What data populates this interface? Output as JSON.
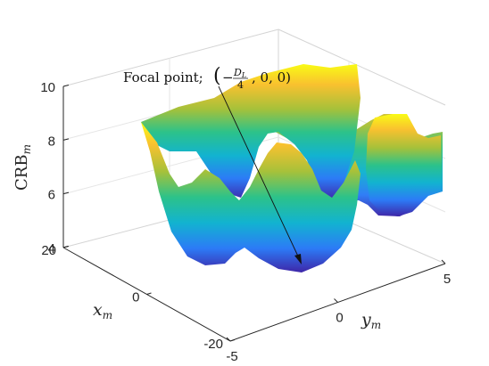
{
  "chart_data": {
    "type": "surface",
    "title": "",
    "annotation": {
      "text_main": "Focal point;",
      "text_math_lparen": "(",
      "text_math_minus": "−",
      "text_math_num": "D",
      "text_math_num_sub": "L",
      "text_math_den": "4",
      "text_math_rest": ", 0, 0)",
      "points_to": [
        0,
        0,
        4.3
      ]
    },
    "xlabel": "x",
    "xlabel_sub": "m",
    "ylabel": "y",
    "ylabel_sub": "m",
    "zlabel": "CRB",
    "zlabel_sub": "m",
    "x_ticks": [
      {
        "value": 20,
        "label": "20"
      },
      {
        "value": 0,
        "label": "0"
      },
      {
        "value": -20,
        "label": "-20"
      }
    ],
    "y_ticks": [
      {
        "value": -5,
        "label": "-5"
      },
      {
        "value": 0,
        "label": "0"
      },
      {
        "value": 5,
        "label": "5"
      }
    ],
    "z_ticks": [
      {
        "value": 4,
        "label": "4"
      },
      {
        "value": 6,
        "label": "6"
      },
      {
        "value": 8,
        "label": "8"
      },
      {
        "value": 10,
        "label": "10"
      }
    ],
    "xlim": [
      -20,
      20
    ],
    "ylim": [
      -5,
      5
    ],
    "zlim": [
      4,
      10
    ],
    "colormap": "parula",
    "colors": [
      "#3e26a8",
      "#2c7bf6",
      "#12b3d0",
      "#2cc28a",
      "#a6c13a",
      "#f9c12f",
      "#f9fb15"
    ],
    "grid": true,
    "x_samples": [
      -10,
      -5,
      0,
      5,
      10
    ],
    "y_samples": [
      -4.5,
      -2.5,
      0,
      2.5,
      4.5
    ],
    "z_values": [
      [
        7.0,
        5.0,
        7.6,
        5.3,
        7.0
      ],
      [
        6.9,
        4.7,
        8.4,
        5.4,
        8.4
      ],
      [
        7.2,
        4.5,
        8.9,
        4.3,
        8.2
      ],
      [
        7.5,
        4.6,
        8.1,
        4.8,
        8.3
      ],
      [
        8.6,
        4.9,
        6.0,
        4.8,
        8.9
      ]
    ]
  }
}
